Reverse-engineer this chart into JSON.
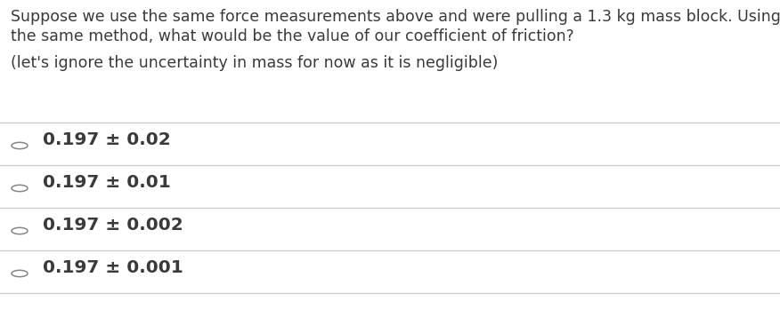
{
  "background_color": "#ffffff",
  "question_line1": "Suppose we use the same force measurements above and were pulling a 1.3 kg mass block. Using",
  "question_line2": "the same method, what would be the value of our coefficient of friction?",
  "note_line": "(let's ignore the uncertainty in mass for now as it is negligible)",
  "options": [
    "0.197 ± 0.02",
    "0.197 ± 0.01",
    "0.197 ± 0.002",
    "0.197 ± 0.001"
  ],
  "text_color": "#3a3a3a",
  "line_color": "#c8c8c8",
  "circle_color": "#888888",
  "question_fontsize": 12.5,
  "note_fontsize": 12.5,
  "option_fontsize": 14.5,
  "fig_width": 8.76,
  "fig_height": 3.57,
  "dpi": 100
}
